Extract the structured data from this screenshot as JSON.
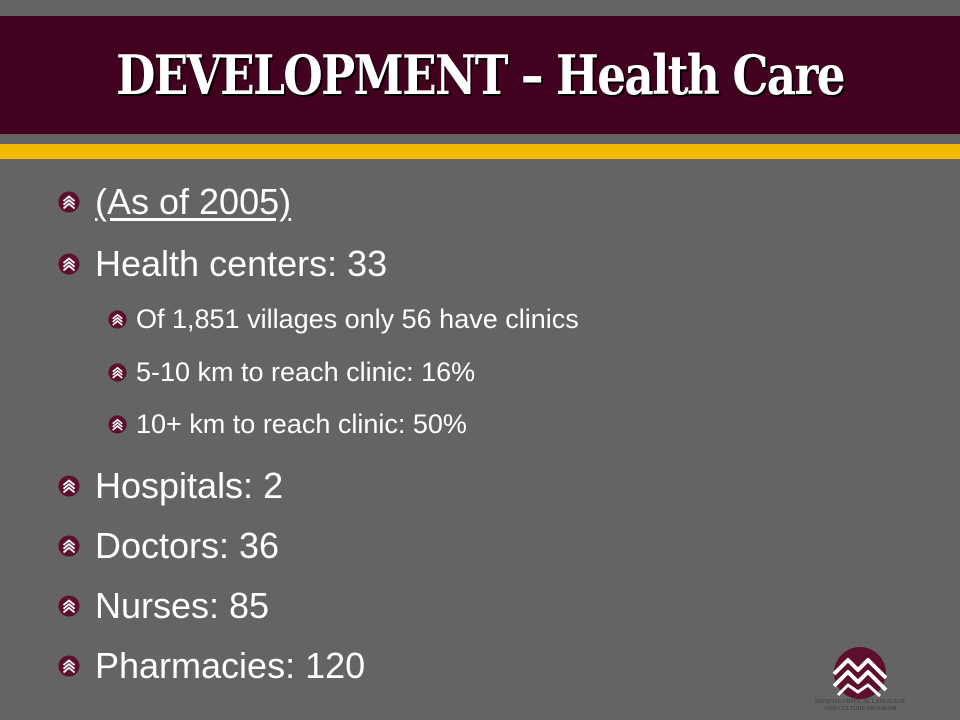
{
  "slide": {
    "title": "DEVELOPMENT – Health Care",
    "bullets": [
      {
        "level": 1,
        "text": "(As of 2005)",
        "underline": true
      },
      {
        "level": 1,
        "text": "Health centers:  33"
      },
      {
        "level": 2,
        "text": "Of 1,851 villages only 56 have clinics"
      },
      {
        "level": 2,
        "text": "5-10 km to reach clinic:  16%"
      },
      {
        "level": 2,
        "text": "10+ km to reach clinic:  50%"
      },
      {
        "level": 1,
        "text": "Hospitals:  2"
      },
      {
        "level": 1,
        "text": "Doctors:  36"
      },
      {
        "level": 1,
        "text": "Nurses:  85"
      },
      {
        "level": 1,
        "text": "Pharmacies:  120"
      }
    ],
    "logo": {
      "icon": "mountain-logo-icon",
      "caption_line1": "DEFENSE CRITICAL LANGUAGE",
      "caption_line2": "AND CULTURE PROGRAM"
    }
  },
  "colors": {
    "background": "#646464",
    "title_band": "#42011e",
    "accent_stripe": "#f2bb00",
    "text": "#ffffff",
    "bullet_marker": "#5e0f2d"
  }
}
